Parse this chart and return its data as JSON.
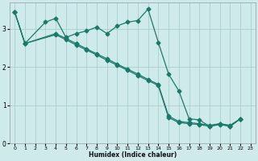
{
  "xlabel": "Humidex (Indice chaleur)",
  "bg_color": "#ceeaea",
  "grid_color": "#aacece",
  "line_color": "#1a7a6a",
  "xlim": [
    -0.5,
    23.5
  ],
  "ylim": [
    0,
    3.7
  ],
  "yticks": [
    0,
    1,
    2,
    3
  ],
  "xticks": [
    0,
    1,
    2,
    3,
    4,
    5,
    6,
    7,
    8,
    9,
    10,
    11,
    12,
    13,
    14,
    15,
    16,
    17,
    18,
    19,
    20,
    21,
    22,
    23
  ],
  "line_curvy_x": [
    0,
    1,
    3,
    4,
    5,
    6,
    7,
    8,
    9,
    10,
    11,
    12,
    13,
    14,
    15,
    16,
    17,
    18,
    19,
    20,
    21,
    22
  ],
  "line_curvy_y": [
    3.45,
    2.62,
    3.18,
    3.28,
    2.78,
    2.88,
    2.95,
    3.05,
    2.88,
    3.08,
    3.18,
    3.22,
    3.52,
    2.65,
    1.82,
    1.38,
    0.65,
    0.62,
    0.45,
    0.52,
    0.45,
    0.65
  ],
  "line_diag1_x": [
    0,
    1,
    4,
    5,
    6,
    7,
    8,
    9,
    10,
    11,
    12,
    13,
    14,
    15,
    16,
    17,
    18,
    19,
    20,
    21,
    22
  ],
  "line_diag1_y": [
    3.45,
    2.62,
    2.85,
    2.72,
    2.58,
    2.45,
    2.32,
    2.18,
    2.05,
    1.92,
    1.78,
    1.65,
    1.52,
    0.68,
    0.55,
    0.52,
    0.5,
    0.45,
    0.5,
    0.45,
    0.65
  ],
  "line_diag2_x": [
    0,
    1,
    4,
    5,
    6,
    7,
    8,
    9,
    10,
    11,
    12,
    13,
    14,
    15,
    16,
    17,
    18,
    19,
    20,
    21,
    22
  ],
  "line_diag2_y": [
    3.45,
    2.62,
    2.88,
    2.75,
    2.62,
    2.48,
    2.35,
    2.22,
    2.08,
    1.95,
    1.82,
    1.68,
    1.55,
    0.72,
    0.58,
    0.55,
    0.52,
    0.48,
    0.52,
    0.48,
    0.65
  ]
}
